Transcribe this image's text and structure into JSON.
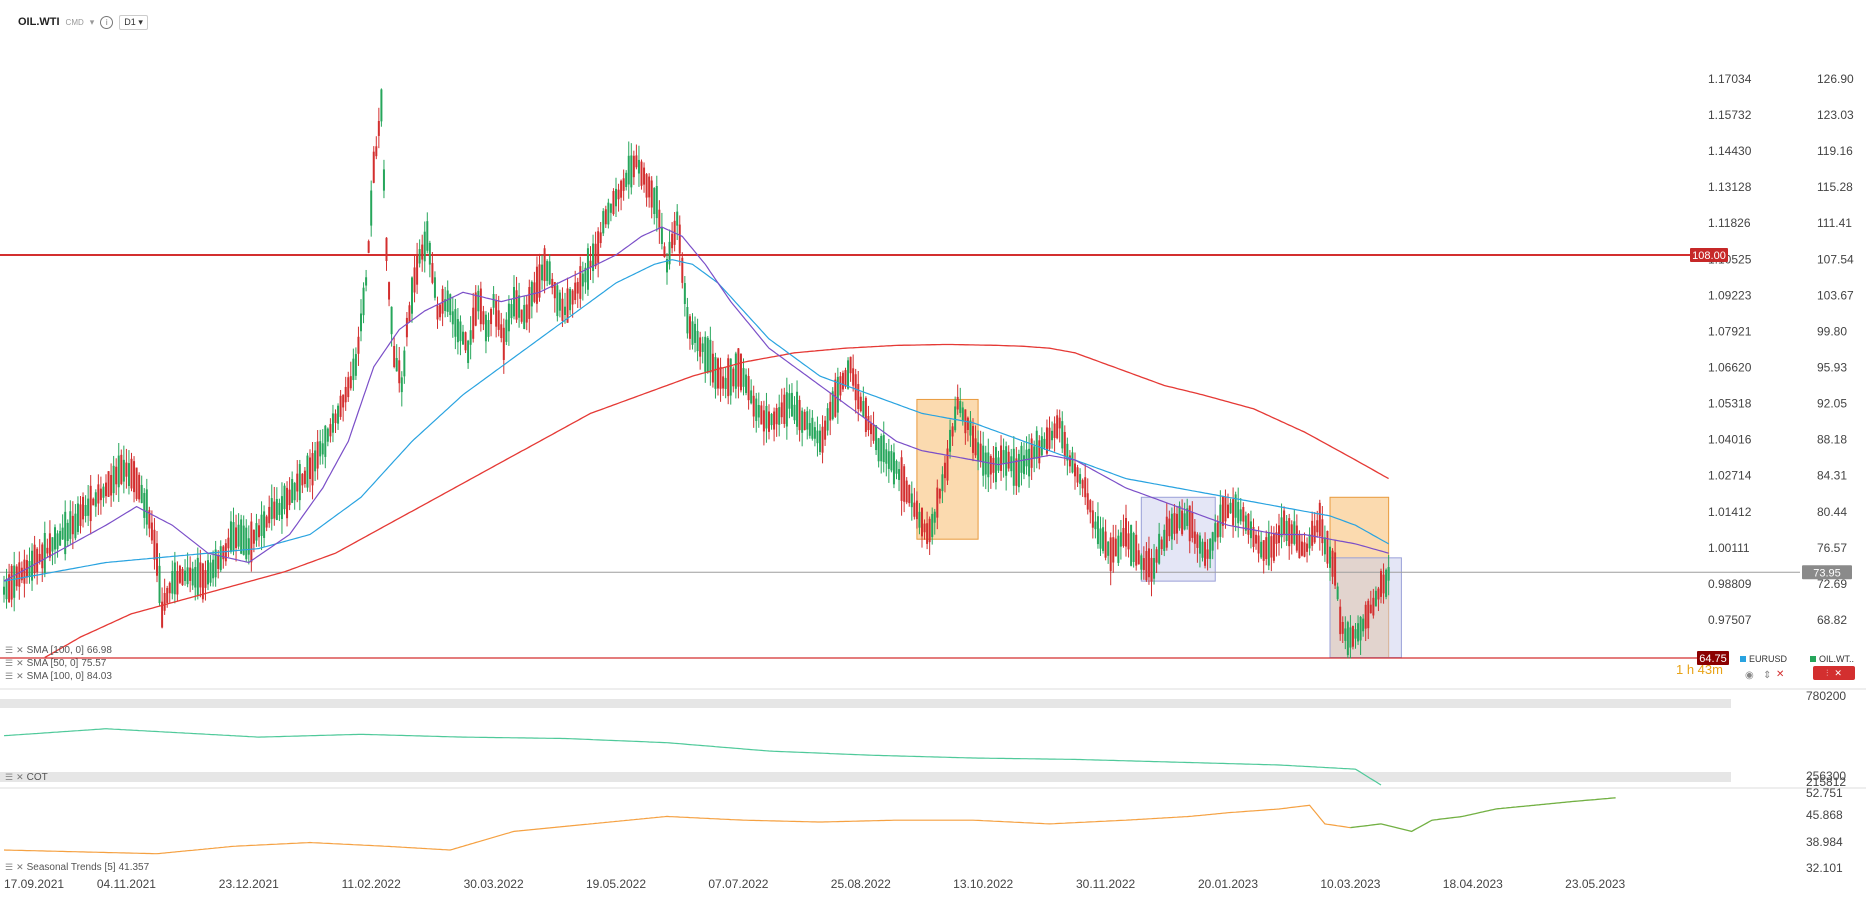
{
  "toolbar": {
    "symbol": "OIL.WTI",
    "type": "CMD",
    "timeframe": "D1",
    "info_icon": "info-icon",
    "caret_icon": "chevron-down-icon"
  },
  "indicators": [
    {
      "label": "SMA [100, 0]",
      "value": "66.98"
    },
    {
      "label": "SMA [50, 0]",
      "value": "75.57"
    },
    {
      "label": "SMA [100, 0]",
      "value": "84.03"
    }
  ],
  "panels": {
    "cot_label": "COT",
    "seasonal_label": "Seasonal Trends [5]",
    "seasonal_value": "41.357"
  },
  "legend": [
    {
      "name": "EURUSD",
      "color": "#29a3e0"
    },
    {
      "name": "OIL.WT..",
      "color": "#26a65b"
    }
  ],
  "timer": "1 h 43m",
  "colors": {
    "up": "#26a65b",
    "down": "#d32f2f",
    "sma_fast": "#7b4fc8",
    "sma_mid": "#29a3e0",
    "sma_slow": "#e53935",
    "cot": "#4fc99a",
    "seasonal": "#f5a142",
    "seasonal_proj": "#72b043",
    "zone_orange": "#f7b560",
    "zone_lavender": "#c9cdee"
  },
  "chart_data": {
    "type": "candlestick",
    "series_name": "OIL.WTI",
    "x_labels": [
      "17.09.2021",
      "04.11.2021",
      "23.12.2021",
      "11.02.2022",
      "30.03.2022",
      "19.05.2022",
      "07.07.2022",
      "25.08.2022",
      "13.10.2022",
      "30.11.2022",
      "20.01.2023",
      "10.03.2023",
      "18.04.2023",
      "23.05.2023"
    ],
    "x_label_index": [
      0,
      48,
      96,
      144,
      192,
      240,
      288,
      336,
      384,
      432,
      480,
      528,
      576,
      624
    ],
    "price_ticks": [
      "126.90",
      "123.03",
      "119.16",
      "115.28",
      "111.41",
      "107.54",
      "103.67",
      "99.80",
      "95.93",
      "92.05",
      "88.18",
      "84.31",
      "80.44",
      "76.57",
      "72.69",
      "68.82"
    ],
    "eurusd_ticks": [
      "1.17034",
      "1.15732",
      "1.14430",
      "1.13128",
      "1.11826",
      "1.10525",
      "1.09223",
      "1.07921",
      "1.06620",
      "1.05318",
      "1.04016",
      "1.02714",
      "1.01412",
      "1.00111",
      "0.98809",
      "0.97507"
    ],
    "ylim": [
      64,
      130
    ],
    "current_price": 73.95,
    "horizontal_levels": [
      108.0,
      64.75
    ],
    "price_anchors": [
      [
        0,
        72
      ],
      [
        8,
        74
      ],
      [
        20,
        77
      ],
      [
        30,
        80
      ],
      [
        40,
        83
      ],
      [
        46,
        85
      ],
      [
        52,
        84
      ],
      [
        57,
        80
      ],
      [
        60,
        75
      ],
      [
        62,
        70
      ],
      [
        66,
        73
      ],
      [
        72,
        74
      ],
      [
        78,
        73
      ],
      [
        84,
        75
      ],
      [
        90,
        78
      ],
      [
        96,
        77
      ],
      [
        104,
        80
      ],
      [
        112,
        82
      ],
      [
        120,
        85
      ],
      [
        128,
        89
      ],
      [
        134,
        93
      ],
      [
        138,
        96
      ],
      [
        142,
        105
      ],
      [
        145,
        117
      ],
      [
        148,
        124
      ],
      [
        150,
        108
      ],
      [
        153,
        97
      ],
      [
        156,
        94
      ],
      [
        158,
        100
      ],
      [
        162,
        107
      ],
      [
        166,
        110
      ],
      [
        170,
        102
      ],
      [
        174,
        103
      ],
      [
        178,
        100
      ],
      [
        182,
        98
      ],
      [
        186,
        103
      ],
      [
        190,
        100
      ],
      [
        192,
        103
      ],
      [
        196,
        99
      ],
      [
        200,
        103
      ],
      [
        204,
        101
      ],
      [
        208,
        104
      ],
      [
        212,
        107
      ],
      [
        216,
        104
      ],
      [
        220,
        102
      ],
      [
        224,
        104
      ],
      [
        228,
        106
      ],
      [
        232,
        108
      ],
      [
        236,
        112
      ],
      [
        240,
        114
      ],
      [
        244,
        116
      ],
      [
        248,
        118
      ],
      [
        252,
        116
      ],
      [
        256,
        113
      ],
      [
        260,
        107
      ],
      [
        264,
        112
      ],
      [
        268,
        101
      ],
      [
        272,
        99
      ],
      [
        276,
        97
      ],
      [
        282,
        94
      ],
      [
        288,
        96
      ],
      [
        294,
        92
      ],
      [
        300,
        90
      ],
      [
        308,
        92
      ],
      [
        315,
        90
      ],
      [
        320,
        88
      ],
      [
        324,
        91
      ],
      [
        328,
        94
      ],
      [
        332,
        96
      ],
      [
        336,
        92
      ],
      [
        342,
        88
      ],
      [
        348,
        86
      ],
      [
        354,
        83
      ],
      [
        360,
        79
      ],
      [
        363,
        78
      ],
      [
        366,
        81
      ],
      [
        370,
        86
      ],
      [
        374,
        92
      ],
      [
        378,
        90
      ],
      [
        382,
        87
      ],
      [
        386,
        85
      ],
      [
        392,
        86
      ],
      [
        398,
        85
      ],
      [
        404,
        87
      ],
      [
        410,
        88
      ],
      [
        414,
        90
      ],
      [
        418,
        86
      ],
      [
        424,
        83
      ],
      [
        428,
        79
      ],
      [
        434,
        76
      ],
      [
        440,
        78
      ],
      [
        446,
        75
      ],
      [
        450,
        74
      ],
      [
        454,
        77
      ],
      [
        458,
        79
      ],
      [
        464,
        80
      ],
      [
        468,
        77
      ],
      [
        472,
        76
      ],
      [
        478,
        80
      ],
      [
        482,
        81
      ],
      [
        486,
        80
      ],
      [
        490,
        78
      ],
      [
        494,
        76
      ],
      [
        498,
        77
      ],
      [
        502,
        79
      ],
      [
        506,
        78
      ],
      [
        510,
        76
      ],
      [
        514,
        78
      ],
      [
        516,
        80
      ],
      [
        518,
        77
      ],
      [
        520,
        76
      ],
      [
        522,
        74
      ],
      [
        524,
        69
      ],
      [
        526,
        67
      ],
      [
        529,
        66.8
      ],
      [
        532,
        68
      ],
      [
        536,
        70
      ],
      [
        540,
        72
      ],
      [
        543,
        74
      ]
    ],
    "sma_fast_anchors": [
      [
        0,
        73
      ],
      [
        20,
        76
      ],
      [
        40,
        79
      ],
      [
        52,
        81
      ],
      [
        66,
        79
      ],
      [
        80,
        76
      ],
      [
        96,
        75
      ],
      [
        112,
        78
      ],
      [
        125,
        83
      ],
      [
        135,
        88
      ],
      [
        145,
        96
      ],
      [
        155,
        100
      ],
      [
        165,
        102
      ],
      [
        180,
        104
      ],
      [
        195,
        103
      ],
      [
        210,
        104
      ],
      [
        225,
        106
      ],
      [
        240,
        108
      ],
      [
        250,
        110
      ],
      [
        258,
        111
      ],
      [
        266,
        110
      ],
      [
        275,
        107
      ],
      [
        285,
        103
      ],
      [
        300,
        98
      ],
      [
        310,
        96
      ],
      [
        320,
        94
      ],
      [
        330,
        92
      ],
      [
        340,
        90
      ],
      [
        350,
        88
      ],
      [
        360,
        87
      ],
      [
        370,
        86.5
      ],
      [
        380,
        86
      ],
      [
        390,
        85.5
      ],
      [
        400,
        86
      ],
      [
        410,
        86.5
      ],
      [
        420,
        86
      ],
      [
        430,
        84.5
      ],
      [
        440,
        83
      ],
      [
        450,
        82
      ],
      [
        460,
        81
      ],
      [
        470,
        80
      ],
      [
        480,
        79
      ],
      [
        490,
        78.5
      ],
      [
        500,
        78
      ],
      [
        510,
        78
      ],
      [
        520,
        77.5
      ],
      [
        530,
        77
      ],
      [
        543,
        76
      ]
    ],
    "sma_mid_anchors": [
      [
        0,
        73
      ],
      [
        20,
        74
      ],
      [
        40,
        75
      ],
      [
        60,
        75.5
      ],
      [
        80,
        76
      ],
      [
        100,
        76.5
      ],
      [
        120,
        78
      ],
      [
        140,
        82
      ],
      [
        160,
        88
      ],
      [
        180,
        93
      ],
      [
        200,
        97
      ],
      [
        220,
        101
      ],
      [
        240,
        105
      ],
      [
        255,
        107
      ],
      [
        262,
        107.5
      ],
      [
        270,
        107
      ],
      [
        280,
        105
      ],
      [
        290,
        102
      ],
      [
        300,
        99
      ],
      [
        310,
        97
      ],
      [
        320,
        95
      ],
      [
        330,
        94
      ],
      [
        340,
        93
      ],
      [
        350,
        92
      ],
      [
        360,
        91
      ],
      [
        380,
        90
      ],
      [
        400,
        88
      ],
      [
        420,
        86
      ],
      [
        440,
        84
      ],
      [
        460,
        83
      ],
      [
        480,
        82
      ],
      [
        500,
        81
      ],
      [
        520,
        80
      ],
      [
        530,
        79
      ],
      [
        543,
        77
      ]
    ],
    "sma_slow_anchors": [
      [
        16,
        64.8
      ],
      [
        30,
        67
      ],
      [
        50,
        69.5
      ],
      [
        70,
        71
      ],
      [
        90,
        72.5
      ],
      [
        110,
        74
      ],
      [
        130,
        76
      ],
      [
        150,
        79
      ],
      [
        170,
        82
      ],
      [
        190,
        85
      ],
      [
        210,
        88
      ],
      [
        230,
        91
      ],
      [
        250,
        93
      ],
      [
        270,
        95
      ],
      [
        290,
        96.5
      ],
      [
        310,
        97.5
      ],
      [
        330,
        98
      ],
      [
        350,
        98.3
      ],
      [
        370,
        98.4
      ],
      [
        390,
        98.3
      ],
      [
        400,
        98.2
      ],
      [
        410,
        98
      ],
      [
        420,
        97.5
      ],
      [
        430,
        96.5
      ],
      [
        440,
        95.5
      ],
      [
        455,
        94
      ],
      [
        470,
        93
      ],
      [
        490,
        91.5
      ],
      [
        510,
        89
      ],
      [
        530,
        86
      ],
      [
        543,
        84
      ]
    ],
    "zones": [
      {
        "type": "orange",
        "from": 358,
        "to": 382,
        "top": 92.5,
        "bottom": 77.5
      },
      {
        "type": "lavender",
        "from": 446,
        "to": 475,
        "top": 82,
        "bottom": 73
      },
      {
        "type": "orange",
        "from": 520,
        "to": 543,
        "top": 82,
        "bottom": 64.8
      },
      {
        "type": "lavender",
        "from": 520,
        "to": 548,
        "top": 75.5,
        "bottom": 64.8
      }
    ],
    "cot_panel": {
      "ticks": [
        "780200",
        "256300"
      ],
      "top_value": 780200,
      "bottom_value": 256300,
      "anchors": [
        [
          0,
          610000
        ],
        [
          40,
          660000
        ],
        [
          60,
          640000
        ],
        [
          100,
          600000
        ],
        [
          140,
          620000
        ],
        [
          180,
          600000
        ],
        [
          220,
          590000
        ],
        [
          260,
          560000
        ],
        [
          300,
          500000
        ],
        [
          340,
          470000
        ],
        [
          380,
          450000
        ],
        [
          420,
          440000
        ],
        [
          460,
          420000
        ],
        [
          500,
          400000
        ],
        [
          530,
          370000
        ],
        [
          540,
          256300
        ]
      ]
    },
    "seasonal_panel": {
      "ticks": [
        "215812",
        "52.751",
        "45.868",
        "38.984",
        "32.101"
      ],
      "anchors": [
        [
          0,
          38
        ],
        [
          30,
          37.5
        ],
        [
          60,
          37
        ],
        [
          90,
          39
        ],
        [
          120,
          40
        ],
        [
          150,
          39
        ],
        [
          175,
          38
        ],
        [
          200,
          43
        ],
        [
          230,
          45
        ],
        [
          260,
          47
        ],
        [
          290,
          46
        ],
        [
          320,
          45.5
        ],
        [
          350,
          46
        ],
        [
          380,
          46
        ],
        [
          410,
          45
        ],
        [
          440,
          46
        ],
        [
          465,
          47
        ],
        [
          480,
          48
        ],
        [
          500,
          49
        ],
        [
          512,
          50
        ],
        [
          518,
          45
        ],
        [
          528,
          44
        ]
      ],
      "projection": [
        [
          528,
          44
        ],
        [
          540,
          45
        ],
        [
          552,
          43
        ],
        [
          560,
          46
        ],
        [
          572,
          47
        ],
        [
          585,
          49
        ],
        [
          600,
          50
        ],
        [
          615,
          51
        ],
        [
          632,
          52
        ]
      ]
    }
  }
}
